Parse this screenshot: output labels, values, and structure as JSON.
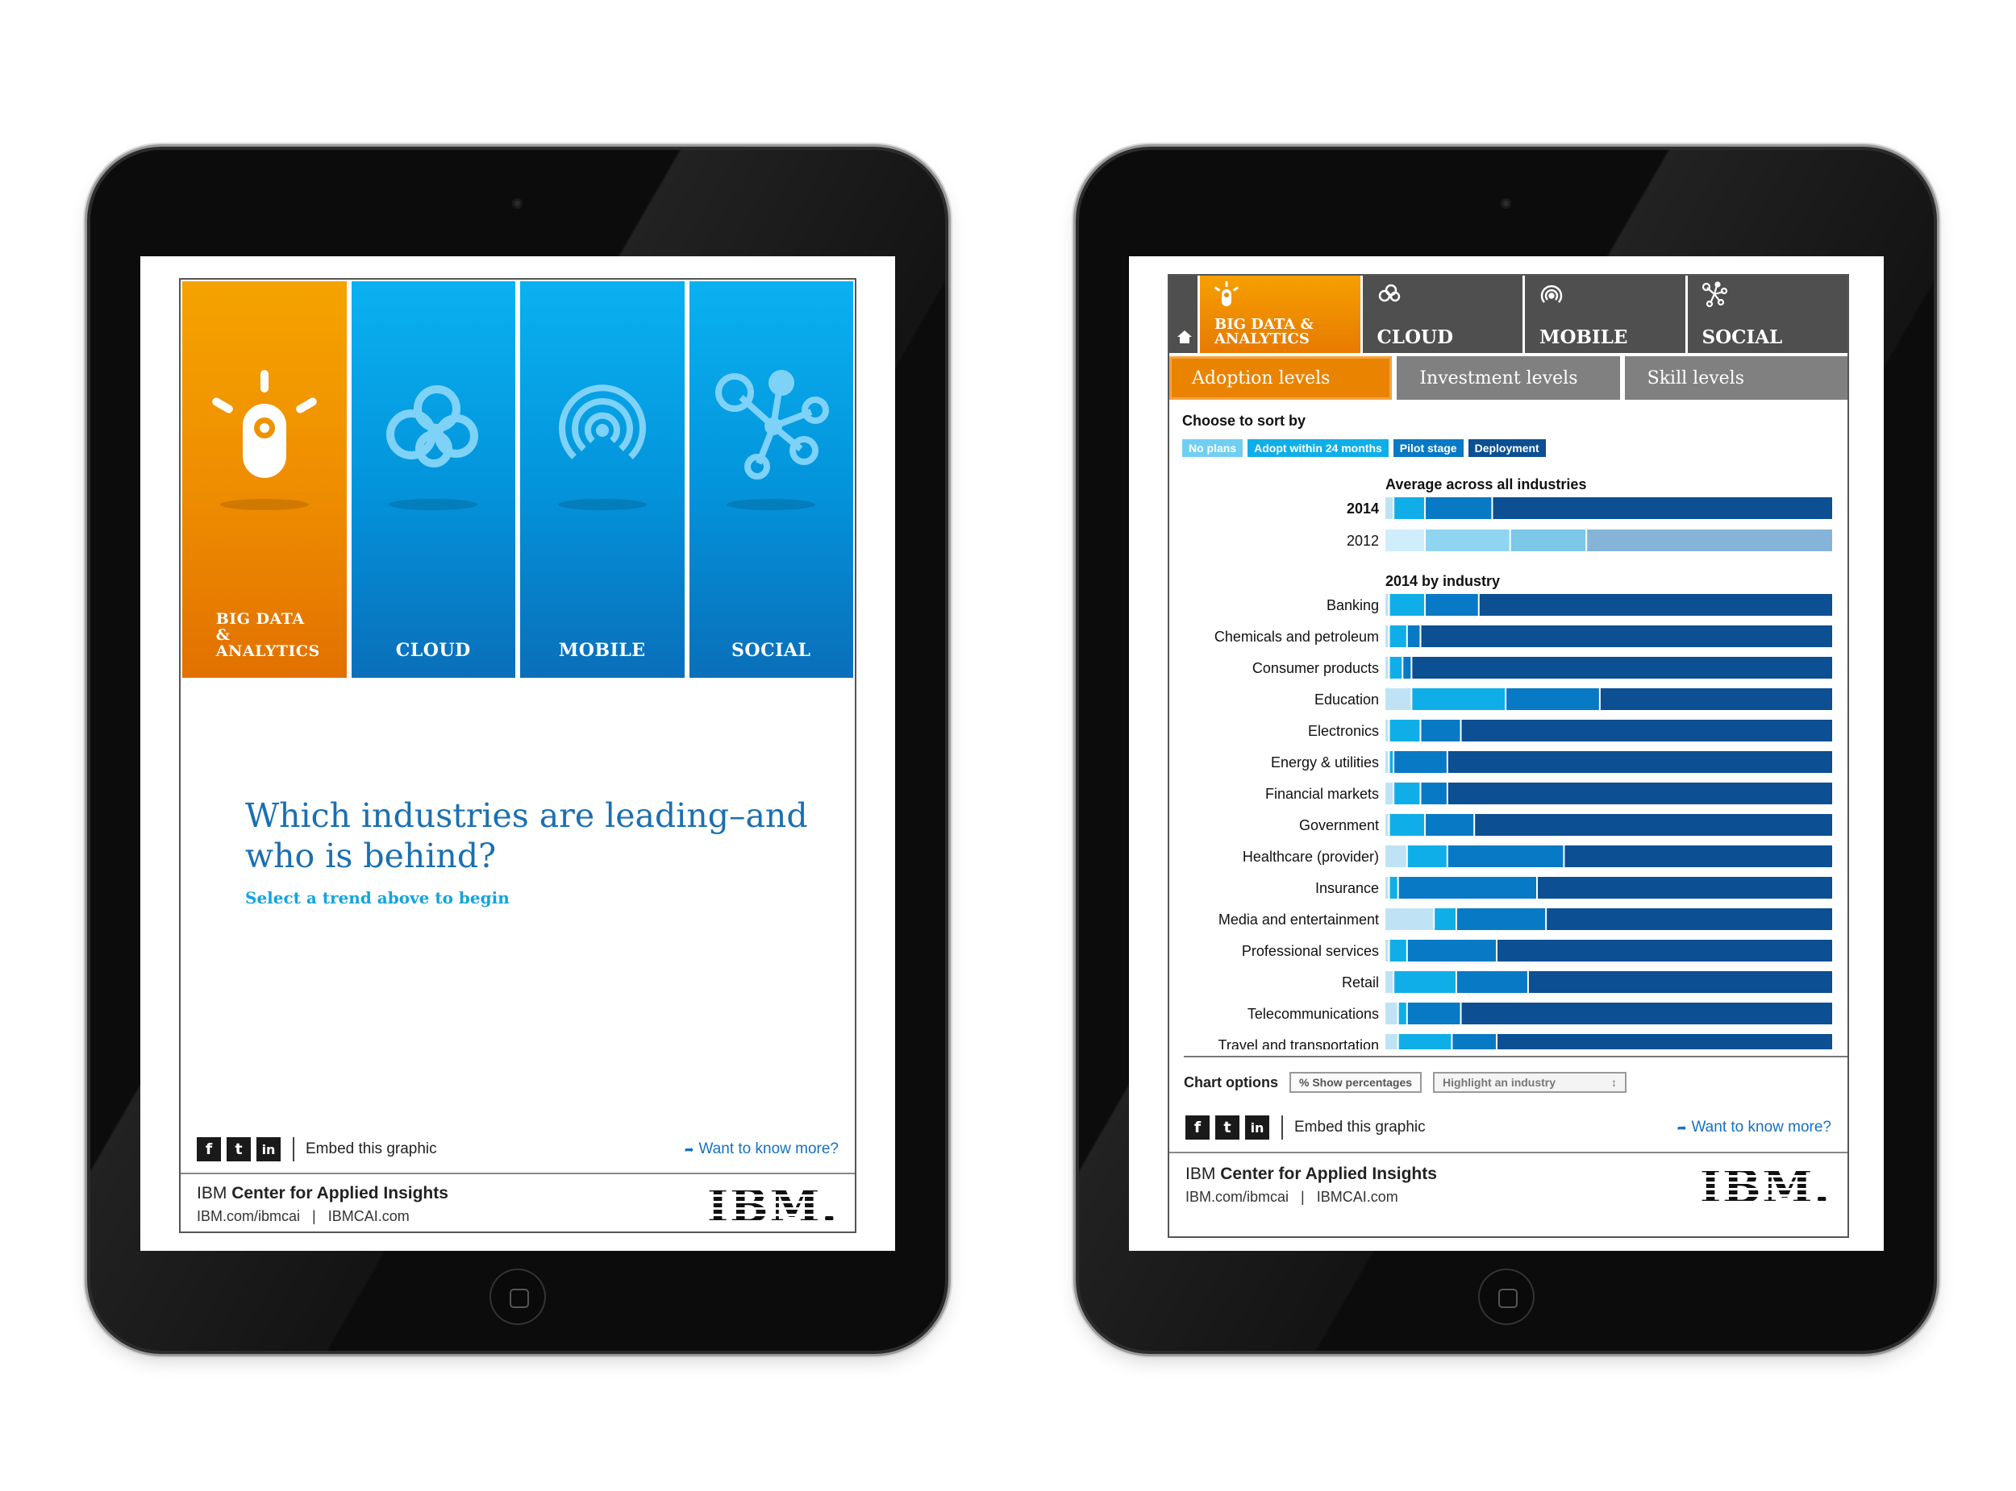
{
  "left": {
    "tiles": [
      {
        "label": "BIG DATA & ANALYTICS",
        "icon": "lightbulb-icon"
      },
      {
        "label": "CLOUD",
        "icon": "cloud-icon"
      },
      {
        "label": "MOBILE",
        "icon": "signal-icon"
      },
      {
        "label": "SOCIAL",
        "icon": "network-icon"
      }
    ],
    "headline": "Which industries are leading–and who is behind?",
    "subline": "Select a trend above to begin",
    "share": {
      "facebook": "f",
      "twitter": "t",
      "linkedin": "in",
      "embed": "Embed this graphic",
      "more": "Want to know more?"
    },
    "footer": {
      "brand_prefix": "IBM",
      "brand_name": "Center for Applied Insights",
      "links": "IBM.com/ibmcai   |   IBMCAI.com",
      "logo": "IBM."
    }
  },
  "right": {
    "tabs": [
      {
        "label": "BIG DATA & ANALYTICS",
        "icon": "lightbulb-icon",
        "active": true
      },
      {
        "label": "CLOUD",
        "icon": "cloud-icon",
        "active": false
      },
      {
        "label": "MOBILE",
        "icon": "signal-icon",
        "active": false
      },
      {
        "label": "SOCIAL",
        "icon": "network-icon",
        "active": false
      }
    ],
    "subtabs": [
      {
        "label": "Adoption levels",
        "active": true
      },
      {
        "label": "Investment levels",
        "active": false
      },
      {
        "label": "Skill levels",
        "active": false
      }
    ],
    "sort_label": "Choose to sort by",
    "legend": [
      {
        "label": "No plans",
        "color": "#6fcff3"
      },
      {
        "label": "Adopt within 24 months",
        "color": "#10aee8"
      },
      {
        "label": "Pilot stage",
        "color": "#0879c5"
      },
      {
        "label": "Deployment",
        "color": "#0c4f92"
      }
    ],
    "chart_options_label": "Chart options",
    "show_percentages": "% Show percentages",
    "highlight_industry": "Highlight an industry",
    "select_arrow": "↕",
    "share": {
      "facebook": "f",
      "twitter": "t",
      "linkedin": "in",
      "embed": "Embed this graphic",
      "more": "Want to know more?"
    },
    "footer": {
      "brand_prefix": "IBM",
      "brand_name": "Center for Applied Insights",
      "links": "IBM.com/ibmcai   |   IBMCAI.com",
      "logo": "IBM."
    }
  },
  "chart_data": {
    "type": "bar",
    "orientation": "horizontal",
    "stacked": true,
    "unit": "%",
    "series_names": [
      "No plans",
      "Adopt within 24 months",
      "Pilot stage",
      "Deployment"
    ],
    "colors_2014": [
      "#bfe3f5",
      "#10aee8",
      "#0879c5",
      "#0c4f92"
    ],
    "colors_2012": [
      "#cfeefb",
      "#8fd5f2",
      "#7dc7e8",
      "#85b4d8"
    ],
    "average_title": "Average across all industries",
    "average": [
      {
        "label": "2014",
        "values": [
          2,
          7,
          15,
          76
        ],
        "bold": true
      },
      {
        "label": "2012",
        "values": [
          9,
          19,
          17,
          55
        ],
        "bold": false
      }
    ],
    "industry_title": "2014 by industry",
    "industries": [
      {
        "label": "Banking",
        "values": [
          1,
          8,
          12,
          79
        ]
      },
      {
        "label": "Chemicals and petroleum",
        "values": [
          1,
          4,
          3,
          92
        ]
      },
      {
        "label": "Consumer products",
        "values": [
          1,
          3,
          2,
          94
        ]
      },
      {
        "label": "Education",
        "values": [
          6,
          21,
          21,
          52
        ]
      },
      {
        "label": "Electronics",
        "values": [
          1,
          7,
          9,
          83
        ]
      },
      {
        "label": "Energy & utilities",
        "values": [
          1,
          1,
          12,
          86
        ]
      },
      {
        "label": "Financial markets",
        "values": [
          2,
          6,
          6,
          86
        ]
      },
      {
        "label": "Government",
        "values": [
          1,
          8,
          11,
          80
        ]
      },
      {
        "label": "Healthcare (provider)",
        "values": [
          5,
          9,
          26,
          60
        ]
      },
      {
        "label": "Insurance",
        "values": [
          1,
          2,
          31,
          66
        ]
      },
      {
        "label": "Media and entertainment",
        "values": [
          11,
          5,
          20,
          64
        ]
      },
      {
        "label": "Professional services",
        "values": [
          1,
          4,
          20,
          75
        ]
      },
      {
        "label": "Retail",
        "values": [
          2,
          14,
          16,
          68
        ]
      },
      {
        "label": "Telecommunications",
        "values": [
          3,
          2,
          12,
          83
        ]
      },
      {
        "label": "Travel and transportation",
        "values": [
          3,
          12,
          10,
          75
        ]
      }
    ]
  }
}
